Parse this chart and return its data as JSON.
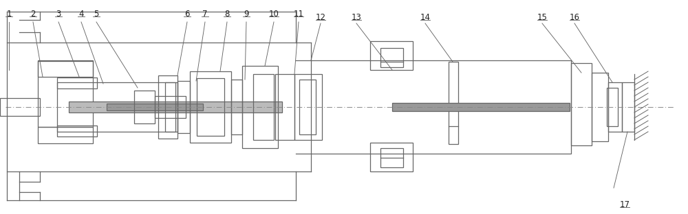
{
  "fig_width": 10.0,
  "fig_height": 3.12,
  "dpi": 100,
  "bg_color": "#ffffff",
  "lc": "#666666",
  "gray_fill": "#999999",
  "light_gray": "#bbbbbb"
}
